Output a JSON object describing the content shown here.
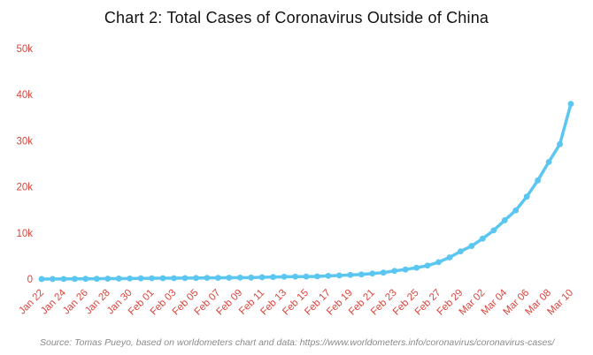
{
  "chart_data": {
    "type": "line",
    "title": "Chart 2: Total Cases of Coronavirus Outside of China",
    "x": [
      "Jan 22",
      "Jan 23",
      "Jan 24",
      "Jan 25",
      "Jan 26",
      "Jan 27",
      "Jan 28",
      "Jan 29",
      "Jan 30",
      "Jan 31",
      "Feb 01",
      "Feb 02",
      "Feb 03",
      "Feb 04",
      "Feb 05",
      "Feb 06",
      "Feb 07",
      "Feb 08",
      "Feb 09",
      "Feb 10",
      "Feb 11",
      "Feb 12",
      "Feb 13",
      "Feb 14",
      "Feb 15",
      "Feb 16",
      "Feb 17",
      "Feb 18",
      "Feb 19",
      "Feb 20",
      "Feb 21",
      "Feb 22",
      "Feb 23",
      "Feb 24",
      "Feb 25",
      "Feb 26",
      "Feb 27",
      "Feb 28",
      "Feb 29",
      "Mar 01",
      "Mar 02",
      "Mar 03",
      "Mar 04",
      "Mar 05",
      "Mar 06",
      "Mar 07",
      "Mar 08",
      "Mar 09",
      "Mar 10"
    ],
    "values": [
      9,
      12,
      25,
      40,
      57,
      64,
      87,
      105,
      118,
      153,
      173,
      183,
      188,
      212,
      227,
      265,
      270,
      288,
      307,
      319,
      395,
      441,
      505,
      526,
      538,
      581,
      694,
      780,
      896,
      1000,
      1200,
      1402,
      1769,
      2069,
      2459,
      2918,
      3664,
      4691,
      6009,
      7169,
      8774,
      10566,
      12754,
      14898,
      17873,
      21399,
      25404,
      29256,
      38000
    ],
    "x_tick_every": 2,
    "y_ticks": [
      {
        "value": 0,
        "label": "0"
      },
      {
        "value": 10000,
        "label": "10k"
      },
      {
        "value": 20000,
        "label": "20k"
      },
      {
        "value": 30000,
        "label": "30k"
      },
      {
        "value": 40000,
        "label": "40k"
      },
      {
        "value": 50000,
        "label": "50k"
      }
    ],
    "ylim": [
      0,
      50000
    ],
    "grid": false,
    "legend": "none",
    "line_color": "#5bc6f0",
    "tick_label_color": "#d9453c",
    "source": "Source: Tomas Pueyo, based on worldometers chart and data: https://www.worldometers.info/coronavirus/coronavirus-cases/"
  }
}
